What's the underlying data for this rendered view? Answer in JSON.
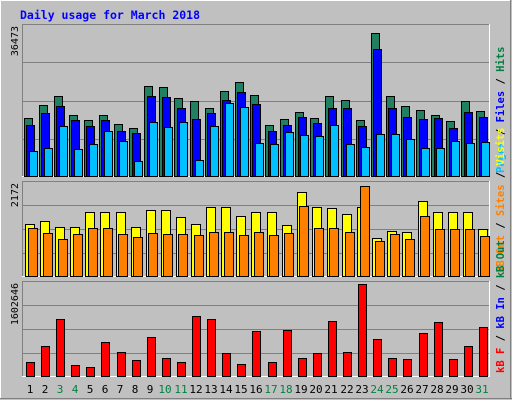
{
  "chart_data": {
    "type": "bar",
    "title": "Daily usage for March 2018",
    "days": [
      "1",
      "2",
      "3",
      "4",
      "5",
      "6",
      "7",
      "8",
      "9",
      "10",
      "11",
      "12",
      "13",
      "14",
      "15",
      "16",
      "17",
      "18",
      "19",
      "20",
      "21",
      "22",
      "23",
      "24",
      "25",
      "26",
      "27",
      "28",
      "29",
      "30",
      "31"
    ],
    "weekend_days": [
      "3",
      "4",
      "10",
      "11",
      "17",
      "18",
      "24",
      "25",
      "31"
    ],
    "panels": [
      {
        "id": "top",
        "max_label": "36473",
        "ylim": [
          0,
          36473
        ],
        "legend": [
          {
            "text": "Pages",
            "color": "#00c0ff"
          },
          {
            "text": " / ",
            "color": "#000000"
          },
          {
            "text": "Files",
            "color": "#0000ff"
          },
          {
            "text": " / ",
            "color": "#000000"
          },
          {
            "text": "Hits",
            "color": "#008040"
          }
        ],
        "series": [
          {
            "name": "Hits",
            "color": "#208060",
            "values": [
              14200,
              17300,
              19600,
              14900,
              13700,
              14900,
              12700,
              11700,
              22000,
              21700,
              19000,
              18300,
              16700,
              20800,
              22900,
              19900,
              12400,
              13900,
              15600,
              14200,
              19600,
              18700,
              13600,
              35000,
              19700,
              17200,
              16200,
              14900,
              13500,
              18400,
              15800
            ]
          },
          {
            "name": "Files",
            "color": "#0000ff",
            "values": [
              12400,
              15400,
              17200,
              13600,
              12200,
              13600,
              10900,
              10500,
              19600,
              19300,
              16700,
              13900,
              15300,
              18500,
              20500,
              17600,
              11100,
              12400,
              14500,
              12900,
              16600,
              16600,
              12200,
              31000,
              16700,
              14500,
              13900,
              14100,
              11800,
              15700,
              14500
            ]
          },
          {
            "name": "Pages",
            "color": "#00c0ff",
            "values": [
              6000,
              6800,
              12200,
              6600,
              7900,
              11100,
              8500,
              3700,
              13200,
              12000,
              13300,
              3900,
              12300,
              17800,
              16800,
              8000,
              7900,
              10800,
              10000,
              9900,
              12400,
              7900,
              7200,
              10300,
              10300,
              9000,
              6800,
              6900,
              8600,
              8200,
              8300
            ]
          }
        ]
      },
      {
        "id": "middle",
        "max_label": "2172",
        "ylim": [
          0,
          2172
        ],
        "legend": [
          {
            "text": "kB Out",
            "color": "#ff8000"
          },
          {
            "text": " / ",
            "color": "#000000"
          },
          {
            "text": "Sites",
            "color": "#ff8000"
          },
          {
            "text": " / ",
            "color": "#000000"
          },
          {
            "text": "Visits",
            "color": "#ffff00"
          }
        ],
        "series": [
          {
            "name": "Visits",
            "color": "#ffff00",
            "values": [
              1230,
              1290,
              1150,
              1150,
              1520,
              1500,
              1500,
              1150,
              1550,
              1550,
              1400,
              1220,
              1620,
              1620,
              1420,
              1520,
              1500,
              1200,
              1980,
              1620,
              1600,
              1460,
              1620,
              890,
              1060,
              1030,
              1780,
              1520,
              1520,
              1520,
              1100
            ]
          },
          {
            "name": "Sites",
            "color": "#ff8000",
            "values": [
              1140,
              1020,
              870,
              980,
              1140,
              1140,
              1000,
              910,
              1020,
              1000,
              990,
              960,
              1040,
              1040,
              960,
              1030,
              960,
              1020,
              1650,
              1130,
              1140,
              1030,
              2120,
              820,
              990,
              870,
              1420,
              1100,
              1100,
              1120,
              940
            ]
          }
        ]
      },
      {
        "id": "bottom",
        "max_label": "1602646",
        "ylim": [
          0,
          1602646
        ],
        "legend": [
          {
            "text": "kB F",
            "color": "#ff0000"
          },
          {
            "text": " / ",
            "color": "#000000"
          },
          {
            "text": "kB In",
            "color": "#0000ff"
          },
          {
            "text": " / ",
            "color": "#000000"
          },
          {
            "text": "kB Out",
            "color": "#008040"
          }
        ],
        "series": [
          {
            "name": "kB F",
            "color": "#ff0000",
            "values": [
              250000,
              530000,
              990000,
              200000,
              150000,
              600000,
              420000,
              280000,
              680000,
              320000,
              240000,
              1040000,
              990000,
              400000,
              210000,
              780000,
              240000,
              800000,
              320000,
              400000,
              960000,
              410000,
              1600000,
              640000,
              310000,
              290000,
              750000,
              940000,
              290000,
              530000,
              850000
            ]
          }
        ]
      }
    ]
  }
}
